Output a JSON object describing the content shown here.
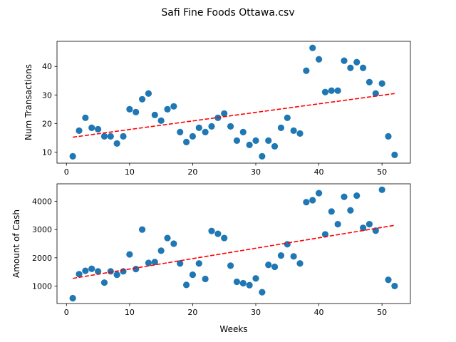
{
  "figure": {
    "title": "Safi Fine Foods Ottawa.csv"
  },
  "colors": {
    "points": "#1f77b4",
    "trend": "#ff0000"
  },
  "chart_data": [
    {
      "type": "scatter",
      "title": "",
      "xlabel": "",
      "ylabel": "Num Transactions",
      "xlim": [
        -1.5,
        54.5
      ],
      "ylim": [
        6.1,
        48.8
      ],
      "xticks": [
        0,
        10,
        20,
        30,
        40,
        50
      ],
      "yticks": [
        10,
        20,
        30,
        40
      ],
      "grid": false,
      "x": [
        1,
        2,
        3,
        4,
        5,
        6,
        7,
        8,
        9,
        10,
        11,
        12,
        13,
        14,
        15,
        16,
        17,
        18,
        19,
        20,
        21,
        22,
        23,
        24,
        25,
        26,
        27,
        28,
        29,
        30,
        31,
        32,
        33,
        34,
        35,
        36,
        37,
        38,
        39,
        40,
        41,
        42,
        43,
        44,
        45,
        46,
        47,
        48,
        49,
        50,
        51,
        52
      ],
      "y": [
        8.5,
        17.5,
        22,
        18.5,
        18,
        15.5,
        15.5,
        13,
        15.5,
        25,
        24,
        28.5,
        30.5,
        23,
        21,
        25,
        26,
        17,
        13.5,
        15.5,
        18.5,
        17,
        19,
        22,
        23.5,
        19,
        14,
        17,
        12.5,
        14,
        8.5,
        14,
        12,
        18.5,
        22,
        17.5,
        16.5,
        38.5,
        46.5,
        42.5,
        31,
        31.5,
        31.5,
        42,
        39.5,
        41.5,
        39.5,
        34.5,
        30.5,
        34,
        15.5,
        9
      ],
      "trend": {
        "x": [
          1,
          52
        ],
        "y": [
          15.2,
          30.5
        ]
      }
    },
    {
      "type": "scatter",
      "title": "",
      "xlabel": "Weeks",
      "ylabel": "Amount of Cash",
      "xlim": [
        -1.5,
        54.5
      ],
      "ylim": [
        380,
        4620
      ],
      "xticks": [
        0,
        10,
        20,
        30,
        40,
        50
      ],
      "yticks": [
        1000,
        2000,
        3000,
        4000
      ],
      "grid": false,
      "x": [
        1,
        2,
        3,
        4,
        5,
        6,
        7,
        8,
        9,
        10,
        11,
        12,
        13,
        14,
        15,
        16,
        17,
        18,
        19,
        20,
        21,
        22,
        23,
        24,
        25,
        26,
        27,
        28,
        29,
        30,
        31,
        32,
        33,
        34,
        35,
        36,
        37,
        38,
        39,
        40,
        41,
        42,
        43,
        44,
        45,
        46,
        47,
        48,
        49,
        50,
        51,
        52
      ],
      "y": [
        570,
        1420,
        1540,
        1610,
        1520,
        1120,
        1520,
        1400,
        1520,
        2120,
        1600,
        3000,
        1820,
        1850,
        2250,
        2700,
        2500,
        1800,
        1040,
        1400,
        1800,
        1250,
        2950,
        2850,
        2700,
        1720,
        1150,
        1100,
        1030,
        1270,
        780,
        1750,
        1680,
        2080,
        2480,
        2050,
        1800,
        3970,
        4040,
        4290,
        2830,
        3640,
        3190,
        4160,
        3680,
        4200,
        3060,
        3190,
        2960,
        4410,
        1220,
        1000
      ],
      "trend": {
        "x": [
          1,
          52
        ],
        "y": [
          1270,
          3150
        ]
      }
    }
  ]
}
